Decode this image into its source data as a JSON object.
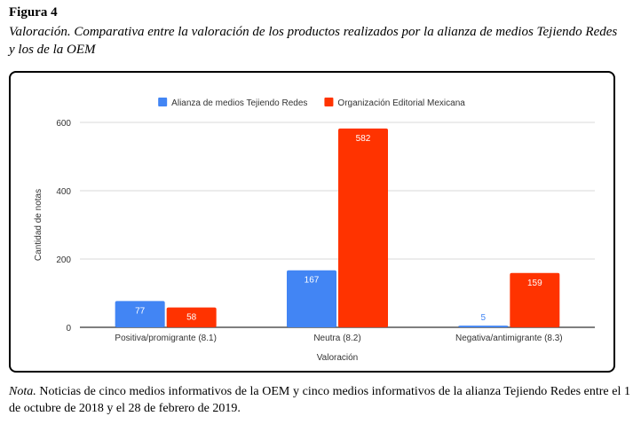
{
  "figure": {
    "label": "Figura 4",
    "title": "Valoración. Comparativa entre la valoración de los productos realizados por la alianza de medios Tejiendo Redes y los de la OEM"
  },
  "note": {
    "prefix": "Nota.",
    "text": "Noticias de cinco medios informativos de la OEM y cinco medios informativos de la alianza Tejiendo Redes entre el 1 de octubre de 2018 y el 28 de febrero de 2019."
  },
  "chart_data": {
    "type": "bar",
    "categories": [
      "Positiva/promigrante (8.1)",
      "Neutra (8.2)",
      "Negativa/antimigrante (8.3)"
    ],
    "series": [
      {
        "name": "Alianza de medios Tejiendo Redes",
        "values": [
          77,
          167,
          5
        ],
        "color": "#4285f4"
      },
      {
        "name": "Organización Editorial Mexicana",
        "values": [
          58,
          582,
          159
        ],
        "color": "#ff3300"
      }
    ],
    "xlabel": "Valoración",
    "ylabel": "Cantidad de notas",
    "ylim": [
      0,
      600
    ],
    "yticks": [
      0,
      200,
      400,
      600
    ],
    "grid": true,
    "legend": "top-center"
  }
}
